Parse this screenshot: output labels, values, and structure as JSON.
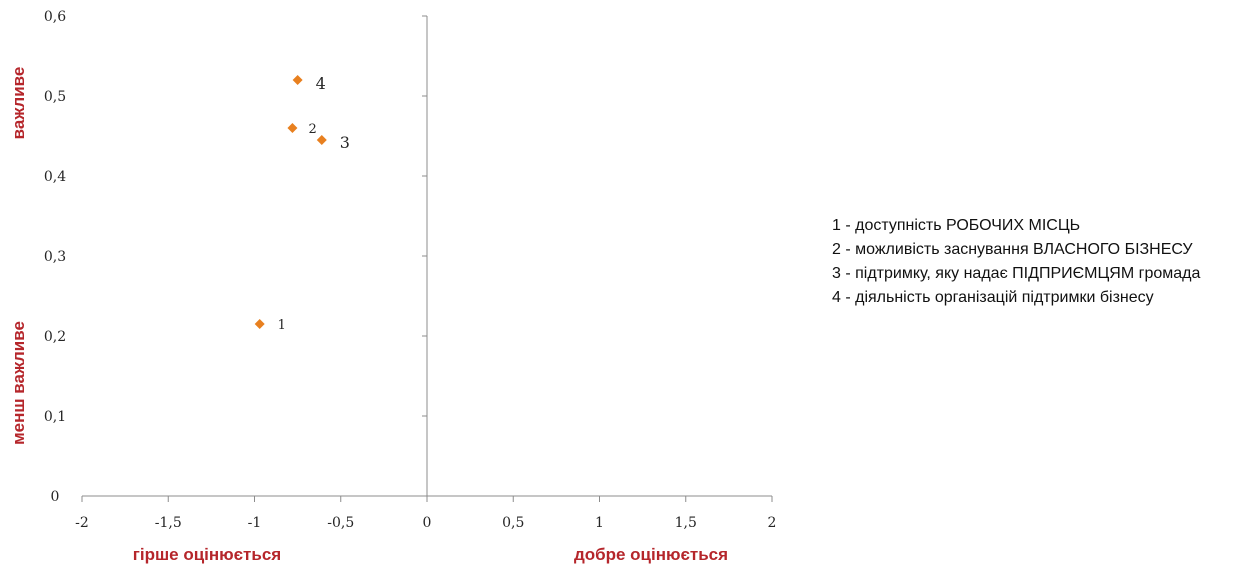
{
  "chart_data": {
    "type": "scatter",
    "xlim": [
      -2,
      2
    ],
    "ylim": [
      0,
      0.6
    ],
    "x_ticks": [
      -2,
      -1.5,
      -1,
      -0.5,
      0,
      0.5,
      1,
      1.5,
      2
    ],
    "y_ticks": [
      0,
      0.1,
      0.2,
      0.3,
      0.4,
      0.5,
      0.6
    ],
    "x_tick_labels": [
      "-2",
      "-1,5",
      "-1",
      "-0,5",
      "0",
      "0,5",
      "1",
      "1,5",
      "2"
    ],
    "y_tick_labels": [
      "0",
      "0,1",
      "0,2",
      "0,3",
      "0,4",
      "0,5",
      "0,6"
    ],
    "grid": false,
    "marker_color": "#e8801f",
    "points": [
      {
        "label": "1",
        "x": -0.97,
        "y": 0.215
      },
      {
        "label": "2",
        "x": -0.78,
        "y": 0.46
      },
      {
        "label": "3",
        "x": -0.61,
        "y": 0.445
      },
      {
        "label": "4",
        "x": -0.75,
        "y": 0.52
      }
    ],
    "axis_captions": {
      "y_top": "важливе",
      "y_bottom": "менш важливе",
      "x_left": "гірше оцінюється",
      "x_right": "добре оцінюється"
    },
    "legend_placement": "right",
    "legend": [
      "1 - доступність РОБОЧИХ МІСЦЬ",
      "2 - можливість заснування ВЛАСНОГО БІЗНЕСУ",
      "3 - підтримку, яку надає ПІДПРИЄМЦЯМ громада",
      "4 - діяльність організацій підтримки бізнесу"
    ]
  }
}
